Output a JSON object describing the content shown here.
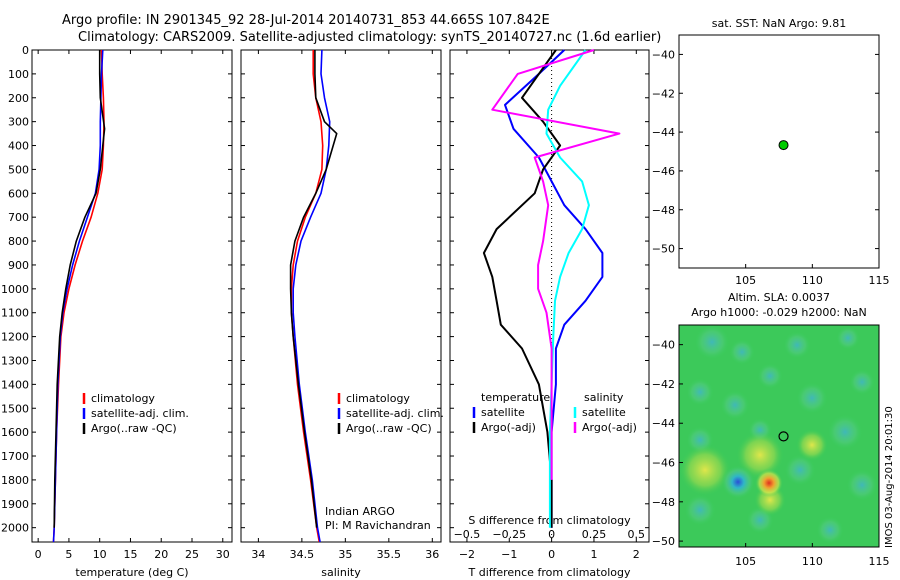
{
  "titles": {
    "line1": "Argo profile: IN 2901345_92 28-Jul-2014 20140731_853 44.665S 107.842E",
    "line2": "Climatology: CARS2009. Satellite-adjusted climatology: synTS_20140727.nc (1.6d earlier)"
  },
  "colors": {
    "climatology": "#ff0000",
    "satellite": "#0000ff",
    "argo": "#000000",
    "salinity_satellite": "#00ffff",
    "salinity_argo": "#ff00ff",
    "point": "#00cc00"
  },
  "chart_data": [
    {
      "type": "line",
      "name": "temperature-profile",
      "xlabel": "temperature (deg C)",
      "xlim": [
        -1,
        31.5
      ],
      "ylim": [
        0,
        2060
      ],
      "y_inverted": true,
      "xticks": [
        0,
        5,
        10,
        15,
        20,
        25,
        30
      ],
      "yticks": [
        0,
        100,
        200,
        300,
        400,
        500,
        600,
        700,
        800,
        900,
        1000,
        1100,
        1200,
        1300,
        1400,
        1500,
        1600,
        1700,
        1800,
        1900,
        2000
      ],
      "legend": [
        "climatology",
        "satellite-adj. clim.",
        "Argo(..raw -QC)"
      ],
      "series": [
        {
          "name": "climatology",
          "x": [
            10.3,
            10.4,
            10.6,
            10.7,
            10.6,
            10.4,
            9.7,
            8.6,
            7.2,
            6.0,
            5.0,
            4.2,
            3.7,
            3.3,
            3.0,
            2.8,
            2.6,
            2.5
          ],
          "y": [
            0,
            100,
            200,
            300,
            400,
            500,
            600,
            700,
            800,
            900,
            1000,
            1100,
            1200,
            1400,
            1600,
            1800,
            2000,
            2060
          ]
        },
        {
          "name": "satellite-adj. clim.",
          "x": [
            10.5,
            10.3,
            10.2,
            10.1,
            10.1,
            9.9,
            9.3,
            8.0,
            6.7,
            5.6,
            4.7,
            4.0,
            3.6,
            3.2,
            3.0,
            2.8,
            2.6,
            2.5
          ],
          "y": [
            0,
            100,
            200,
            300,
            400,
            500,
            600,
            700,
            800,
            900,
            1000,
            1100,
            1200,
            1400,
            1600,
            1800,
            2000,
            2060
          ]
        },
        {
          "name": "Argo(..raw -QC)",
          "x": [
            10.0,
            10.0,
            10.1,
            10.8,
            10.5,
            10.1,
            9.4,
            7.6,
            6.2,
            5.2,
            4.5,
            3.9,
            3.5,
            3.1,
            2.9,
            2.7,
            2.6
          ],
          "y": [
            0,
            100,
            200,
            330,
            400,
            500,
            600,
            700,
            800,
            900,
            1000,
            1100,
            1200,
            1400,
            1600,
            1800,
            2000
          ]
        }
      ]
    },
    {
      "type": "line",
      "name": "salinity-profile",
      "xlabel": "salinity",
      "xlim": [
        33.8,
        36.1
      ],
      "ylim": [
        0,
        2060
      ],
      "y_inverted": true,
      "xticks": [
        34,
        34.5,
        35,
        35.5,
        36
      ],
      "legend": [
        "climatology",
        "satellite-adj. clim.",
        "Argo(..raw -QC)"
      ],
      "annotation": [
        "Indian ARGO",
        "PI: M Ravichandran"
      ],
      "series": [
        {
          "name": "climatology",
          "x": [
            34.63,
            34.63,
            34.66,
            34.72,
            34.74,
            34.73,
            34.66,
            34.54,
            34.45,
            34.4,
            34.38,
            34.38,
            34.4,
            34.45,
            34.52,
            34.6,
            34.67,
            34.7
          ],
          "y": [
            0,
            100,
            200,
            300,
            400,
            500,
            600,
            700,
            800,
            900,
            1000,
            1100,
            1200,
            1400,
            1600,
            1800,
            2000,
            2060
          ]
        },
        {
          "name": "satellite-adj. clim.",
          "x": [
            34.73,
            34.72,
            34.76,
            34.82,
            34.81,
            34.78,
            34.72,
            34.6,
            34.49,
            34.43,
            34.4,
            34.4,
            34.42,
            34.47,
            34.54,
            34.62,
            34.68,
            34.71
          ],
          "y": [
            0,
            100,
            200,
            300,
            400,
            500,
            600,
            700,
            800,
            900,
            1000,
            1100,
            1200,
            1400,
            1600,
            1800,
            2000,
            2060
          ]
        },
        {
          "name": "Argo(..raw -QC)",
          "x": [
            34.65,
            34.65,
            34.66,
            34.76,
            34.9,
            34.78,
            34.66,
            34.52,
            34.42,
            34.37,
            34.37,
            34.38,
            34.4,
            34.46,
            34.53,
            34.61,
            34.67
          ],
          "y": [
            0,
            100,
            200,
            300,
            350,
            500,
            600,
            700,
            800,
            900,
            1000,
            1100,
            1200,
            1400,
            1600,
            1800,
            2000
          ]
        }
      ]
    },
    {
      "type": "line",
      "name": "difference-profile",
      "xlabel": "T difference from climatology",
      "xlabel_top": "S difference from climatology",
      "xlim": [
        -2.4,
        2.3
      ],
      "ylim": [
        0,
        2060
      ],
      "y_inverted": true,
      "xticks": [
        -2,
        -1,
        0,
        1,
        2
      ],
      "xticks_s": [
        -0.5,
        -0.25,
        0,
        0.25,
        0.5
      ],
      "legend_temperature_title": "temperature",
      "legend_salinity_title": "salinity",
      "legend_temperature": [
        "satellite",
        "Argo(-adj)"
      ],
      "legend_salinity": [
        "satellite",
        "Argo(-adj)"
      ],
      "series": [
        {
          "name": "temperature satellite",
          "x": [
            0.3,
            -0.3,
            -1.1,
            -0.9,
            -0.3,
            0.0,
            0.3,
            0.8,
            1.2,
            1.2,
            0.8,
            0.3,
            0.1,
            0.1,
            0.0,
            0.0,
            0.0
          ],
          "y": [
            0,
            100,
            230,
            330,
            450,
            550,
            650,
            750,
            850,
            950,
            1050,
            1150,
            1250,
            1400,
            1600,
            1800,
            2000
          ]
        },
        {
          "name": "temperature Argo(-adj)",
          "x": [
            0.1,
            -0.3,
            -0.7,
            -0.2,
            0.2,
            -0.2,
            -0.4,
            -1.3,
            -1.6,
            -1.4,
            -1.3,
            -1.2,
            -0.7,
            -0.3,
            -0.1,
            0.0,
            0.0
          ],
          "y": [
            0,
            100,
            200,
            300,
            400,
            500,
            600,
            750,
            850,
            950,
            1050,
            1150,
            1250,
            1400,
            1600,
            1800,
            2000
          ]
        },
        {
          "name": "salinity satellite",
          "x": [
            0.2,
            0.05,
            -0.02,
            -0.03,
            0.05,
            0.18,
            0.22,
            0.18,
            0.1,
            0.05,
            0.02,
            0.01,
            0.0,
            -0.01,
            -0.01,
            -0.01
          ],
          "y": [
            0,
            150,
            250,
            350,
            450,
            550,
            650,
            750,
            850,
            950,
            1050,
            1200,
            1400,
            1600,
            1800,
            2000
          ]
        },
        {
          "name": "salinity Argo(-adj)",
          "x": [
            0.25,
            -0.2,
            -0.35,
            0.4,
            -0.1,
            -0.05,
            -0.02,
            -0.05,
            -0.08,
            -0.08,
            -0.03,
            0.0,
            0.0,
            0.0,
            0.0
          ],
          "y": [
            0,
            100,
            250,
            350,
            450,
            550,
            650,
            800,
            900,
            1000,
            1100,
            1250,
            1400,
            1600,
            1800
          ]
        }
      ]
    },
    {
      "type": "scatter",
      "name": "sst-location-map",
      "title": "sat. SST: NaN Argo: 9.81",
      "xlim": [
        100,
        115
      ],
      "ylim": [
        -51,
        -39
      ],
      "xticks": [
        105,
        110,
        115
      ],
      "yticks": [
        -40,
        -42,
        -44,
        -46,
        -48,
        -50
      ],
      "points": [
        {
          "x": 107.84,
          "y": -44.67
        }
      ]
    },
    {
      "type": "heatmap",
      "name": "sla-map",
      "title_line1": "Altim. SLA: 0.0037",
      "title_line2": "Argo h1000: -0.029 h2000: NaN",
      "xlim": [
        100,
        115
      ],
      "ylim": [
        -50.3,
        -39
      ],
      "xticks": [
        105,
        110,
        115
      ],
      "yticks": [
        -40,
        -42,
        -44,
        -46,
        -48,
        -50
      ],
      "argo_position": {
        "x": 107.84,
        "y": -44.67
      },
      "side_label": "IMOS 03-Aug-2014 20:01:30"
    }
  ]
}
